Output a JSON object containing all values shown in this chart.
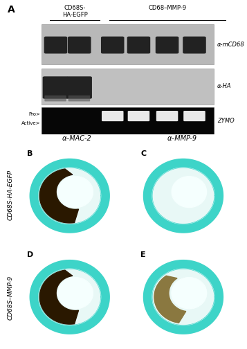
{
  "fig_width": 3.57,
  "fig_height": 5.04,
  "dpi": 100,
  "bg_color": "#ffffff",
  "panel_A_label": "A",
  "panel_B_label": "B",
  "panel_C_label": "C",
  "panel_D_label": "D",
  "panel_E_label": "E",
  "group1_label": "CD68S-\nHA-EGFP",
  "group2_label": "CD68–MMP-9",
  "blot1_label": "α-mCD68",
  "blot2_label": "α-HA",
  "blot3_label": "ZYMO",
  "pro_label": "Pro>",
  "active_label": "Active>",
  "col_label1": "α–MAC-2",
  "col_label2": "α–MMP-9",
  "row_label1": "CD68S-HA-EGFP",
  "row_label2": "CD68S–MMP-9",
  "blot_bg": "#b8b8b8",
  "blot_bg_light": "#c0c0c0",
  "band_dark": "#222222",
  "zymo_bg": "#060606",
  "zymo_band": "#e8e8e8",
  "teal_outer": "#3dd4c8",
  "teal_inner": "#55ddd5",
  "teal_wall": "#45d8cf",
  "img_bg": "#f0fafa",
  "brown_dark": "#2a1800",
  "brown_light": "#8a7840"
}
